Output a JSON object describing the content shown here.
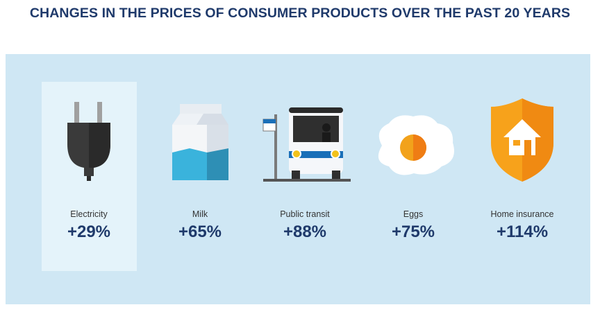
{
  "chart_data": {
    "type": "table",
    "title": "CHANGES IN THE PRICES OF CONSUMER PRODUCTS OVER THE PAST 20 YEARS",
    "categories": [
      "Electricity",
      "Milk",
      "Public transit",
      "Eggs",
      "Home insurance"
    ],
    "values": [
      29,
      65,
      88,
      75,
      114
    ],
    "value_labels": [
      "+29%",
      "+65%",
      "+88%",
      "+75%",
      "+114%"
    ],
    "unit": "%",
    "highlighted_category": "Electricity",
    "icons": [
      "plug-icon",
      "milk-carton-icon",
      "bus-stop-icon",
      "fried-egg-icon",
      "shield-house-icon"
    ]
  },
  "colors": {
    "title": "#1f3a6b",
    "panel_background": "#cfe7f4",
    "highlight_background": "#e4f3fa",
    "value_text": "#1f3a6b",
    "label_text": "#333333"
  }
}
